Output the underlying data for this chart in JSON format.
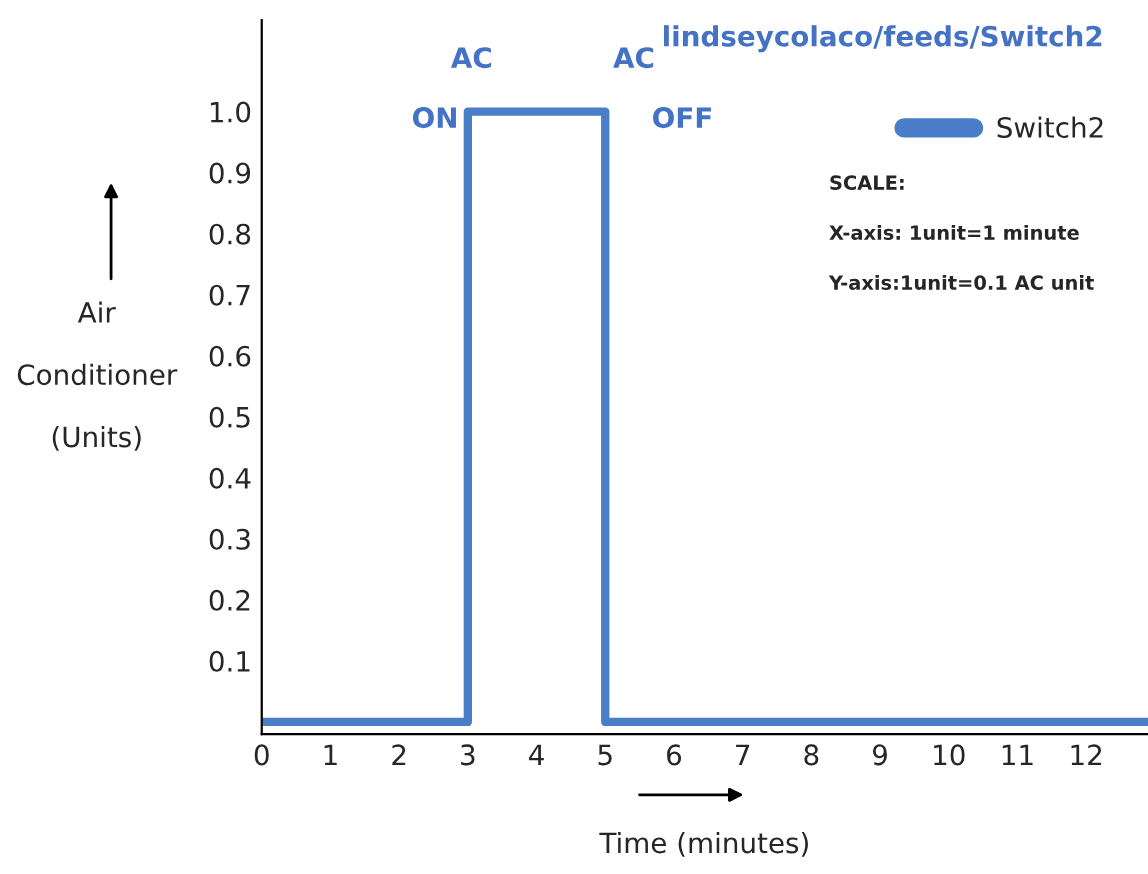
{
  "chart_data": {
    "type": "step",
    "title": "lindseycolaco/feeds/Switch2",
    "xlabel": "Time (minutes)",
    "ylabel": "Air\n\nConditioner\n\n(Units)",
    "x": [
      0,
      3,
      5,
      12.9
    ],
    "series": [
      {
        "name": "Switch2",
        "color": "#4a7ec9",
        "values": [
          0,
          1,
          0,
          0
        ]
      }
    ],
    "xlim": [
      0,
      12.9
    ],
    "ylim": [
      -0.02,
      1.15
    ],
    "xticks": [
      0,
      1,
      2,
      3,
      4,
      5,
      6,
      7,
      8,
      9,
      10,
      11,
      12
    ],
    "yticks": [
      0.1,
      0.2,
      0.3,
      0.4,
      0.5,
      0.6,
      0.7,
      0.8,
      0.9,
      {
        "value": 1,
        "label": "1.0"
      }
    ],
    "legend": "top right",
    "grid": false,
    "line_style": "solid",
    "marker": "none",
    "annotations": [
      "AC",
      "ON",
      "AC",
      "OFF",
      "SCALE:",
      "X-axis: 1unit=1 minute",
      "Y-axis:1unit=0.1 AC unit"
    ]
  }
}
